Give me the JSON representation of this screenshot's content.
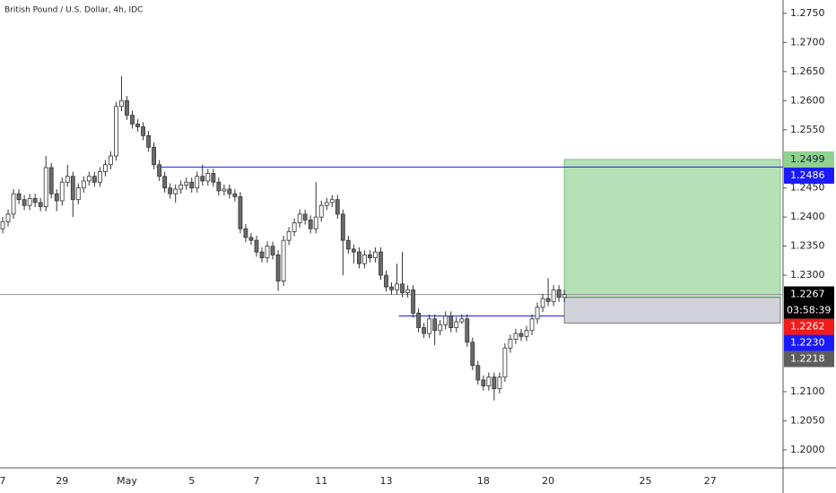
{
  "chart_data": {
    "type": "candlestick",
    "title": "British Pound / U.S. Dollar, 4h, IDC",
    "categories": [
      "7",
      null,
      null,
      null,
      null,
      null,
      null,
      null,
      null,
      null,
      null,
      "29",
      null,
      null,
      null,
      null,
      null,
      null,
      null,
      null,
      null,
      null,
      null,
      "May",
      null,
      null,
      null,
      null,
      null,
      null,
      null,
      null,
      null,
      null,
      null,
      "5",
      null,
      null,
      null,
      null,
      null,
      null,
      null,
      null,
      null,
      null,
      null,
      "7",
      null,
      null,
      null,
      null,
      null,
      null,
      null,
      null,
      null,
      null,
      null,
      "11",
      null,
      null,
      null,
      null,
      null,
      null,
      null,
      null,
      null,
      null,
      null,
      "13",
      null,
      null,
      null,
      null,
      null,
      null,
      null,
      null,
      null,
      null,
      null,
      null,
      null,
      null,
      null,
      null,
      null,
      "18",
      null,
      null,
      null,
      null,
      null,
      null,
      null,
      null,
      null,
      null,
      null,
      "20",
      null,
      null,
      null,
      null,
      null,
      null,
      null,
      null,
      null,
      null,
      null,
      null,
      null,
      null,
      null,
      null,
      null,
      "25",
      null,
      null,
      null,
      null,
      null,
      null,
      null,
      null,
      null,
      null,
      null,
      "27",
      null,
      null,
      null,
      null,
      null,
      null,
      null,
      null,
      null,
      null,
      null,
      null,
      null
    ],
    "open": [
      1.238,
      1.2392,
      1.2405,
      1.244,
      1.243,
      1.242,
      1.2432,
      1.2425,
      1.2418,
      1.2485,
      1.244,
      1.2428,
      1.246,
      1.247,
      1.243,
      1.245,
      1.2462,
      1.247,
      1.246,
      1.2478,
      1.249,
      1.2505,
      1.259,
      1.26,
      1.2575,
      1.256,
      1.2555,
      1.254,
      1.252,
      1.249,
      1.247,
      1.245,
      1.244,
      1.2448,
      1.2455,
      1.246,
      1.245,
      1.247,
      1.2462,
      1.2475,
      1.246,
      1.2445,
      1.2448,
      1.244,
      1.2435,
      1.238,
      1.2365,
      1.236,
      1.234,
      1.233,
      1.235,
      1.2335,
      1.229,
      1.236,
      1.2375,
      1.239,
      1.2405,
      1.2395,
      1.238,
      1.24,
      1.242,
      1.2425,
      1.243,
      1.2405,
      1.236,
      1.2345,
      1.234,
      1.232,
      1.2335,
      1.233,
      1.234,
      1.23,
      1.228,
      1.2275,
      1.2285,
      1.227,
      1.2275,
      1.2235,
      1.221,
      1.22,
      1.2225,
      1.2205,
      1.2215,
      1.223,
      1.221,
      1.222,
      1.2225,
      1.2185,
      1.2145,
      1.212,
      1.211,
      1.2125,
      1.2105,
      1.2125,
      1.2175,
      1.219,
      1.22,
      1.2195,
      1.2205,
      1.2225,
      1.2245,
      1.226,
      1.2255,
      1.2275,
      1.2262,
      null,
      null,
      null,
      null,
      null,
      null,
      null,
      null,
      null,
      null,
      null,
      null,
      null,
      null,
      null,
      null,
      null,
      null,
      null,
      null,
      null,
      null,
      null,
      null,
      null,
      null,
      null,
      null,
      null,
      null,
      null,
      null,
      null,
      null,
      null,
      null,
      null,
      null,
      null,
      null
    ],
    "high": [
      1.24,
      1.2413,
      1.2448,
      1.2448,
      1.2438,
      1.244,
      1.244,
      1.2433,
      1.2505,
      1.2493,
      1.2448,
      1.2468,
      1.249,
      1.2478,
      1.2458,
      1.247,
      1.2478,
      1.2478,
      1.2486,
      1.2498,
      1.2513,
      1.2598,
      1.2642,
      1.2608,
      1.2583,
      1.2568,
      1.2563,
      1.2548,
      1.2528,
      1.2498,
      1.2478,
      1.2458,
      1.2456,
      1.2463,
      1.2468,
      1.2468,
      1.2478,
      1.249,
      1.2483,
      1.2483,
      1.2468,
      1.2456,
      1.2456,
      1.2448,
      1.2443,
      1.2388,
      1.2373,
      1.2368,
      1.2348,
      1.2358,
      1.2358,
      1.2343,
      1.2368,
      1.2383,
      1.2398,
      1.2413,
      1.2413,
      1.2403,
      1.246,
      1.2428,
      1.2433,
      1.2438,
      1.2438,
      1.2413,
      1.2368,
      1.2353,
      1.2348,
      1.2343,
      1.2343,
      1.2348,
      1.2348,
      1.2308,
      1.2288,
      1.232,
      1.234,
      1.2283,
      1.2283,
      1.2243,
      1.2218,
      1.2233,
      1.2233,
      1.2223,
      1.2238,
      1.2238,
      1.2228,
      1.2233,
      1.2233,
      1.2193,
      1.2153,
      1.2128,
      1.2133,
      1.2133,
      1.2133,
      1.2183,
      1.2198,
      1.2208,
      1.2208,
      1.2213,
      1.2233,
      1.2253,
      1.2268,
      1.2295,
      1.2283,
      1.2283,
      1.2275,
      null,
      null,
      null,
      null,
      null,
      null,
      null,
      null,
      null,
      null,
      null,
      null,
      null,
      null,
      null,
      null,
      null,
      null,
      null,
      null,
      null,
      null,
      null,
      null,
      null,
      null,
      null,
      null,
      null,
      null,
      null,
      null,
      null,
      null,
      null,
      null,
      null,
      null,
      null,
      null
    ],
    "low": [
      1.2372,
      1.2384,
      1.2397,
      1.2422,
      1.2412,
      1.2412,
      1.2417,
      1.241,
      1.241,
      1.2432,
      1.241,
      1.242,
      1.2452,
      1.24,
      1.2422,
      1.2442,
      1.2454,
      1.2452,
      1.2452,
      1.247,
      1.2482,
      1.2497,
      1.2582,
      1.2567,
      1.2552,
      1.2547,
      1.2532,
      1.2512,
      1.2482,
      1.2462,
      1.2442,
      1.2432,
      1.2425,
      1.244,
      1.2447,
      1.2442,
      1.2442,
      1.2454,
      1.2454,
      1.2452,
      1.2437,
      1.2437,
      1.2432,
      1.2427,
      1.2372,
      1.2357,
      1.2352,
      1.2332,
      1.2322,
      1.2322,
      1.2327,
      1.2273,
      1.2282,
      1.2352,
      1.2367,
      1.2382,
      1.2387,
      1.2372,
      1.2372,
      1.2392,
      1.2412,
      1.2417,
      1.2397,
      1.23,
      1.2337,
      1.232,
      1.2312,
      1.2312,
      1.2322,
      1.2322,
      1.2292,
      1.2272,
      1.2267,
      1.2267,
      1.2262,
      1.2262,
      1.2227,
      1.2202,
      1.2192,
      1.2192,
      1.218,
      1.2197,
      1.2207,
      1.2202,
      1.2202,
      1.2217,
      1.2177,
      1.2137,
      1.2112,
      1.2102,
      1.2102,
      1.2085,
      1.2097,
      1.2117,
      1.2167,
      1.2182,
      1.2187,
      1.2187,
      1.2197,
      1.2217,
      1.2237,
      1.2247,
      1.2247,
      1.2254,
      1.2254,
      null,
      null,
      null,
      null,
      null,
      null,
      null,
      null,
      null,
      null,
      null,
      null,
      null,
      null,
      null,
      null,
      null,
      null,
      null,
      null,
      null,
      null,
      null,
      null,
      null,
      null,
      null,
      null,
      null,
      null,
      null,
      null,
      null,
      null,
      null,
      null,
      null,
      null,
      null,
      null
    ],
    "close": [
      1.2392,
      1.2405,
      1.244,
      1.243,
      1.242,
      1.2432,
      1.2425,
      1.2418,
      1.2485,
      1.244,
      1.2428,
      1.246,
      1.247,
      1.243,
      1.245,
      1.2462,
      1.247,
      1.246,
      1.2478,
      1.249,
      1.2505,
      1.259,
      1.26,
      1.2575,
      1.256,
      1.2555,
      1.254,
      1.252,
      1.249,
      1.247,
      1.245,
      1.244,
      1.2448,
      1.2455,
      1.246,
      1.245,
      1.247,
      1.2462,
      1.2475,
      1.246,
      1.2445,
      1.2448,
      1.244,
      1.2435,
      1.238,
      1.2365,
      1.236,
      1.234,
      1.233,
      1.235,
      1.2335,
      1.229,
      1.236,
      1.2375,
      1.239,
      1.2405,
      1.2395,
      1.238,
      1.24,
      1.242,
      1.2425,
      1.243,
      1.2405,
      1.236,
      1.2345,
      1.234,
      1.232,
      1.2335,
      1.233,
      1.234,
      1.23,
      1.228,
      1.2275,
      1.2285,
      1.227,
      1.2275,
      1.2235,
      1.221,
      1.22,
      1.2225,
      1.2205,
      1.2215,
      1.223,
      1.221,
      1.222,
      1.2225,
      1.2185,
      1.2145,
      1.212,
      1.211,
      1.2125,
      1.2105,
      1.2125,
      1.2175,
      1.219,
      1.22,
      1.2195,
      1.2205,
      1.2225,
      1.2245,
      1.226,
      1.2255,
      1.2275,
      1.2262,
      1.2267,
      null,
      null,
      null,
      null,
      null,
      null,
      null,
      null,
      null,
      null,
      null,
      null,
      null,
      null,
      null,
      null,
      null,
      null,
      null,
      null,
      null,
      null,
      null,
      null,
      null,
      null,
      null,
      null,
      null,
      null,
      null,
      null,
      null,
      null,
      null,
      null,
      null,
      null,
      null,
      null
    ],
    "up_color": "#ffffff",
    "down_color": "#6b6b6b",
    "outline_color": "#333333",
    "ylim": [
      1.1969,
      1.2773
    ],
    "yticks": [
      {
        "value": 1.2,
        "label": "1.2000"
      },
      {
        "value": 1.205,
        "label": "1.2050"
      },
      {
        "value": 1.21,
        "label": "1.2100"
      },
      {
        "value": 1.23,
        "label": "1.2300"
      },
      {
        "value": 1.235,
        "label": "1.2350"
      },
      {
        "value": 1.24,
        "label": "1.2400"
      },
      {
        "value": 1.245,
        "label": "1.2450"
      },
      {
        "value": 1.255,
        "label": "1.2550"
      },
      {
        "value": 1.26,
        "label": "1.2600"
      },
      {
        "value": 1.265,
        "label": "1.2650"
      },
      {
        "value": 1.27,
        "label": "1.2700"
      },
      {
        "value": 1.275,
        "label": "1.2750"
      }
    ],
    "last_price": {
      "value": 1.2267,
      "label": "1.2267",
      "countdown": "03:58:39",
      "color": "#000000",
      "line_color": "#9a9a9a"
    },
    "levels": [
      {
        "value": 1.2486,
        "label": "1.2486",
        "color": "#1a1aff"
      },
      {
        "value": 1.223,
        "label": "1.2230",
        "color": "#1a1aff"
      }
    ],
    "position": {
      "target": {
        "value": 1.2499,
        "label": "1.2499",
        "color": "#8fd18f"
      },
      "entry": {
        "value": 1.2262,
        "label": "1.2262",
        "color": "#f21a1a"
      },
      "stop": {
        "value": 1.2218,
        "label": "1.2218",
        "color": "#5e5e5e"
      },
      "profit_color": "#b6e0b6",
      "loss_color": "#d2d2da"
    }
  }
}
